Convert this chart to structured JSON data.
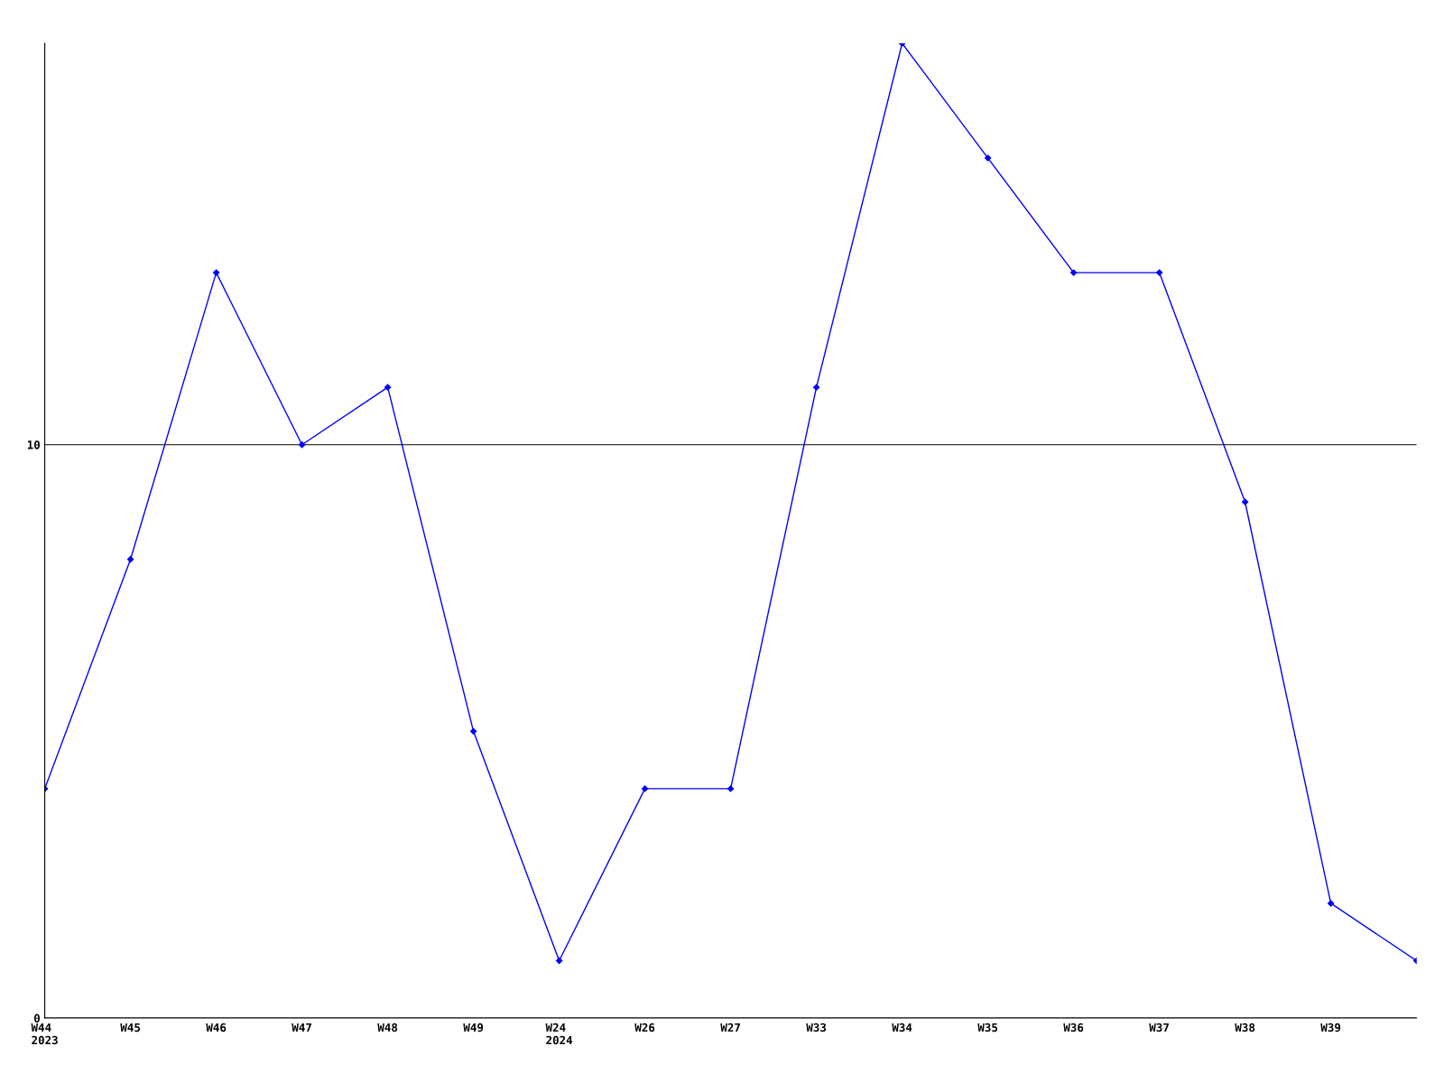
{
  "chart_data": {
    "type": "line",
    "categories": [
      "W44\n2023",
      "W45",
      "W46",
      "W47",
      "W48",
      "W49",
      "W24\n2024",
      "W26",
      "W27",
      "W33",
      "W34",
      "W35",
      "W36",
      "W37",
      "W38",
      "W39",
      null
    ],
    "series": [
      {
        "color": "#0000ff",
        "values": [
          4,
          8,
          13,
          10,
          11,
          5,
          1,
          4,
          4,
          11,
          17,
          15,
          13,
          13,
          9,
          2,
          1
        ]
      }
    ],
    "ylim": [
      0,
      17
    ],
    "yticks": [
      0,
      10
    ],
    "grid": "y",
    "marker": "diamond",
    "line_style": "solid",
    "legend": false
  }
}
